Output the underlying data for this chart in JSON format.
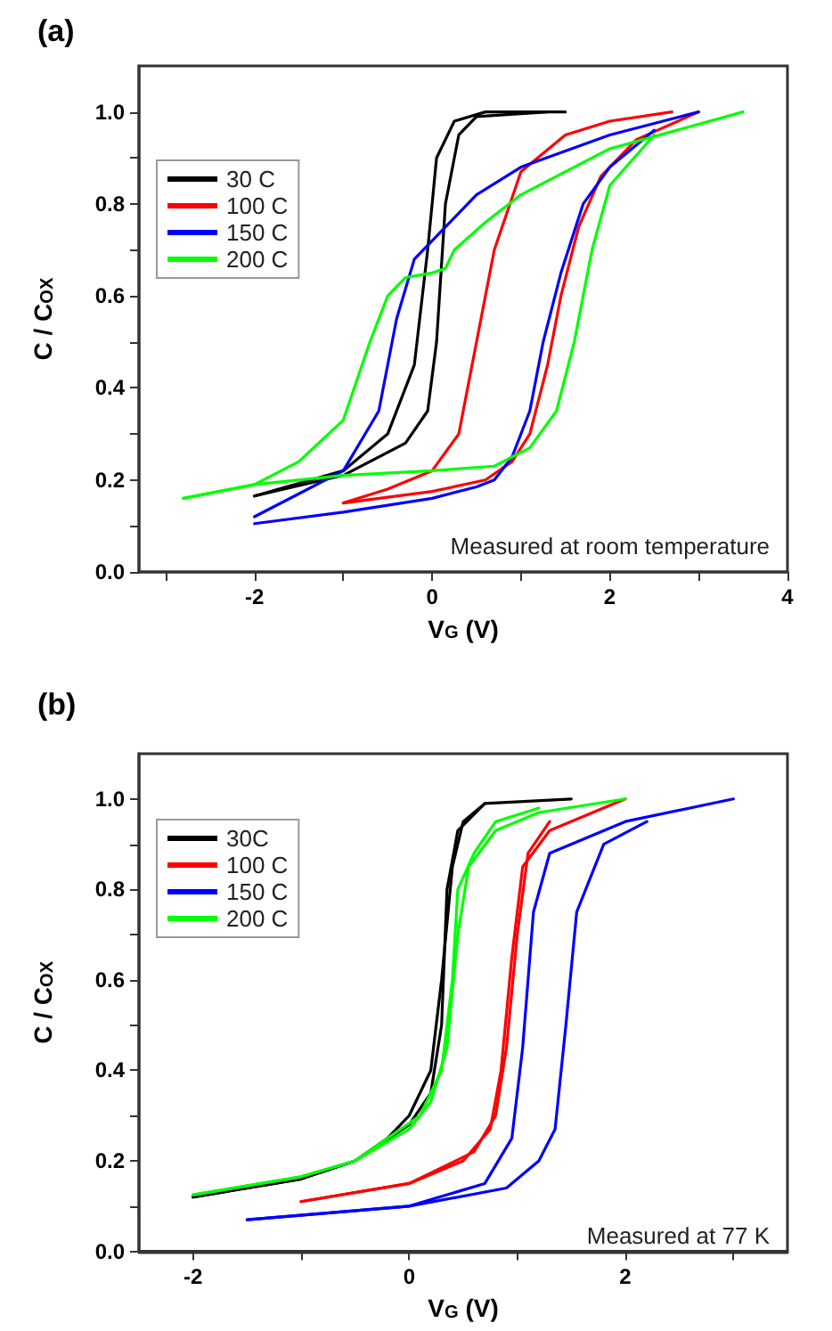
{
  "chart_data": [
    {
      "type": "line",
      "title": "(a)",
      "xlabel": "V$_{G}$ (V)",
      "ylabel": "C / C$_{OX}$",
      "annotations": [
        "Measured at room temperature"
      ],
      "legend": "top left",
      "grid": false,
      "marker": "none",
      "line_style": "solid",
      "xlim": [
        -3.3,
        4
      ],
      "xticks": [
        {
          "value": -3,
          "label": null
        },
        -2,
        {
          "value": -1,
          "label": null
        },
        0,
        {
          "value": 1,
          "label": null
        },
        2,
        {
          "value": 3,
          "label": null
        },
        4
      ],
      "ylim": [
        0,
        1.1
      ],
      "yticks": [
        {
          "value": 0,
          "label": "0.0"
        },
        {
          "value": 0.1,
          "label": null
        },
        0.2,
        {
          "value": 0.3,
          "label": null
        },
        0.4,
        {
          "value": 0.5,
          "label": null
        },
        0.6,
        {
          "value": 0.7,
          "label": null
        },
        0.8,
        {
          "value": 0.9,
          "label": null
        },
        {
          "value": 1,
          "label": "1.0"
        }
      ],
      "series": [
        {
          "name": "30 C",
          "color": "#000000",
          "x": [
            -2,
            -1,
            -0.5,
            -0.2,
            -0.05,
            0.05,
            0.25,
            0.6,
            1.5
          ],
          "values": [
            0.165,
            0.22,
            0.3,
            0.45,
            0.7,
            0.9,
            0.98,
            1.0,
            1.0
          ]
        },
        {
          "color": "#000000",
          "x": [
            1.3,
            0.5,
            0.3,
            0.15,
            0.05,
            -0.05,
            -0.3,
            -1,
            -2
          ],
          "values": [
            1.0,
            0.99,
            0.95,
            0.8,
            0.5,
            0.35,
            0.28,
            0.21,
            0.165
          ]
        },
        {
          "name": "100 C",
          "color": "#ff0000",
          "x": [
            -1,
            0,
            0.6,
            0.9,
            1.1,
            1.3,
            1.45,
            1.65,
            1.9,
            2.3,
            3
          ],
          "values": [
            0.15,
            0.175,
            0.2,
            0.24,
            0.3,
            0.45,
            0.6,
            0.75,
            0.86,
            0.94,
            1.0
          ]
        },
        {
          "color": "#ff0000",
          "x": [
            2.7,
            2,
            1.5,
            1,
            0.7,
            0.5,
            0.3,
            0,
            -0.5,
            -1
          ],
          "values": [
            1.0,
            0.98,
            0.95,
            0.87,
            0.7,
            0.5,
            0.3,
            0.22,
            0.18,
            0.15
          ]
        },
        {
          "name": "150 C",
          "color": "#0000ff",
          "x": [
            -2,
            -1.5,
            -1,
            -0.6,
            -0.4,
            -0.2,
            0.05,
            0.2,
            0.5,
            1,
            2,
            3
          ],
          "values": [
            0.12,
            0.17,
            0.22,
            0.35,
            0.55,
            0.68,
            0.73,
            0.76,
            0.82,
            0.88,
            0.95,
            1.0
          ]
        },
        {
          "color": "#0000ff",
          "x": [
            2.5,
            2,
            1.7,
            1.45,
            1.25,
            1.1,
            0.9,
            0.7,
            0.5,
            0,
            -1,
            -2
          ],
          "values": [
            0.96,
            0.88,
            0.8,
            0.65,
            0.5,
            0.35,
            0.25,
            0.2,
            0.185,
            0.16,
            0.13,
            0.105
          ]
        },
        {
          "name": "200 C",
          "color": "#00ff00",
          "x": [
            -2.8,
            -2,
            -1.5,
            -1,
            -0.7,
            -0.5,
            -0.3,
            0,
            0.15,
            0.25,
            0.6,
            1,
            2,
            3.5
          ],
          "values": [
            0.16,
            0.19,
            0.24,
            0.33,
            0.5,
            0.6,
            0.64,
            0.65,
            0.66,
            0.7,
            0.76,
            0.82,
            0.92,
            1.0
          ]
        },
        {
          "color": "#00ff00",
          "x": [
            2.5,
            2,
            1.8,
            1.6,
            1.4,
            1.1,
            0.7,
            0,
            -1,
            -2,
            -2.8
          ],
          "values": [
            0.95,
            0.84,
            0.7,
            0.5,
            0.35,
            0.27,
            0.23,
            0.22,
            0.21,
            0.19,
            0.16
          ]
        }
      ]
    },
    {
      "type": "line",
      "title": "(b)",
      "xlabel": "V$_{G}$ (V)",
      "ylabel": "C / C$_{OX}$",
      "annotations": [
        "Measured at 77 K"
      ],
      "legend": "top left",
      "grid": false,
      "marker": "none",
      "line_style": "solid",
      "xlim": [
        -2.5,
        3.5
      ],
      "xticks": [
        -2,
        {
          "value": -1,
          "label": null
        },
        0,
        {
          "value": 1,
          "label": null
        },
        2,
        {
          "value": 3,
          "label": null
        }
      ],
      "ylim": [
        0,
        1.1
      ],
      "yticks": [
        {
          "value": 0,
          "label": "0.0"
        },
        {
          "value": 0.1,
          "label": null
        },
        0.2,
        {
          "value": 0.3,
          "label": null
        },
        0.4,
        {
          "value": 0.5,
          "label": null
        },
        0.6,
        {
          "value": 0.7,
          "label": null
        },
        0.8,
        {
          "value": 0.9,
          "label": null
        },
        {
          "value": 1,
          "label": "1.0"
        }
      ],
      "series": [
        {
          "name": "30C",
          "color": "#000000",
          "x": [
            -2,
            -1,
            -0.5,
            -0.2,
            0,
            0.2,
            0.3,
            0.4,
            0.5,
            0.7,
            1.5
          ],
          "values": [
            0.12,
            0.16,
            0.2,
            0.25,
            0.3,
            0.4,
            0.6,
            0.85,
            0.95,
            0.99,
            1.0
          ]
        },
        {
          "color": "#000000",
          "x": [
            0.7,
            0.45,
            0.35,
            0.3,
            0.2,
            0,
            -0.5,
            -1,
            -2
          ],
          "values": [
            0.99,
            0.93,
            0.8,
            0.5,
            0.35,
            0.28,
            0.2,
            0.16,
            0.12
          ]
        },
        {
          "name": "100 C",
          "color": "#ff0000",
          "x": [
            -1,
            0,
            0.5,
            0.75,
            0.85,
            0.95,
            1.05,
            1.3,
            2
          ],
          "values": [
            0.11,
            0.15,
            0.2,
            0.27,
            0.4,
            0.65,
            0.85,
            0.93,
            1.0
          ]
        },
        {
          "color": "#ff0000",
          "x": [
            1.3,
            1.1,
            1.0,
            0.9,
            0.8,
            0.6,
            0,
            -1
          ],
          "values": [
            0.95,
            0.88,
            0.7,
            0.45,
            0.3,
            0.22,
            0.15,
            0.11
          ]
        },
        {
          "name": "150 C",
          "color": "#0000ff",
          "x": [
            -1.5,
            0,
            0.7,
            0.95,
            1.05,
            1.15,
            1.3,
            2,
            3
          ],
          "values": [
            0.07,
            0.1,
            0.15,
            0.25,
            0.45,
            0.75,
            0.88,
            0.95,
            1.0
          ]
        },
        {
          "color": "#0000ff",
          "x": [
            2.2,
            1.8,
            1.55,
            1.45,
            1.35,
            1.2,
            0.9,
            0,
            -1.5
          ],
          "values": [
            0.95,
            0.9,
            0.75,
            0.5,
            0.27,
            0.2,
            0.14,
            0.1,
            0.07
          ]
        },
        {
          "name": "200 C",
          "color": "#00ff00",
          "x": [
            -2,
            -1,
            -0.5,
            0,
            0.2,
            0.35,
            0.45,
            0.55,
            0.8,
            1.2,
            2
          ],
          "values": [
            0.125,
            0.165,
            0.2,
            0.27,
            0.33,
            0.45,
            0.7,
            0.85,
            0.93,
            0.97,
            1.0
          ]
        },
        {
          "color": "#00ff00",
          "x": [
            1.2,
            0.8,
            0.6,
            0.45,
            0.4,
            0.3,
            0.1,
            -0.5,
            -1,
            -2
          ],
          "values": [
            0.98,
            0.95,
            0.88,
            0.8,
            0.6,
            0.4,
            0.3,
            0.2,
            0.165,
            0.125
          ]
        }
      ]
    }
  ]
}
